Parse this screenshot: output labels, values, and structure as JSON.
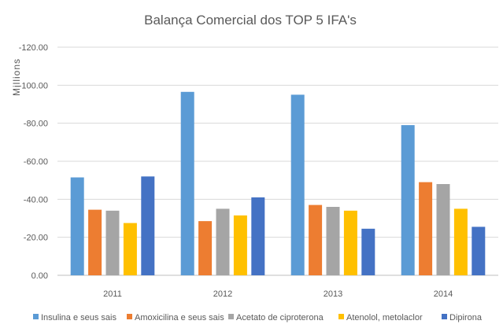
{
  "chart_data": {
    "type": "bar",
    "title": "Balança Comercial dos TOP 5 IFA's",
    "ylabel": "Millions",
    "xlabel": "",
    "categories": [
      "2011",
      "2012",
      "2013",
      "2014"
    ],
    "ylim": [
      0,
      -120
    ],
    "y_ticks": [
      "0.00",
      "-20.00",
      "-40.00",
      "-60.00",
      "-80.00",
      "-100.00",
      "-120.00"
    ],
    "grid": true,
    "legend_position": "bottom",
    "series": [
      {
        "name": "Insulina e seus sais",
        "color": "#5B9BD5",
        "values": [
          -51.5,
          -96.5,
          -95,
          -79
        ]
      },
      {
        "name": "Amoxicilina e seus sais",
        "color": "#ED7D31",
        "values": [
          -34.5,
          -28.5,
          -37,
          -49
        ]
      },
      {
        "name": "Acetato de ciproterona",
        "color": "#A5A5A5",
        "values": [
          -34,
          -35,
          -36,
          -48
        ]
      },
      {
        "name": "Atenolol, metolaclor",
        "color": "#FFC000",
        "values": [
          -27.5,
          -31.5,
          -34,
          -35
        ]
      },
      {
        "name": "Dipirona",
        "color": "#4472C4",
        "values": [
          -52,
          -41,
          -24.5,
          -25.5
        ]
      }
    ]
  }
}
